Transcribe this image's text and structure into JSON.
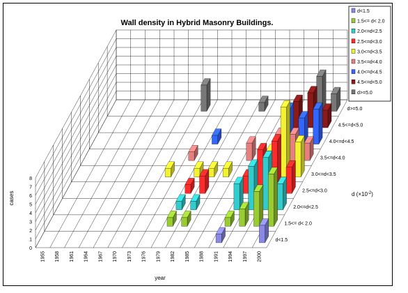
{
  "chart_data": {
    "type": "bar",
    "variant": "3d-columns",
    "title": "Wall density in Hybrid Masonry Buildings.",
    "xlabel": "year",
    "ylabel": "cases",
    "zlabel": "d (×10",
    "zlabel_sup": "-2",
    "zlabel_close": ")",
    "ylim": [
      0,
      8
    ],
    "y_ticks": [
      "0",
      "1",
      "2",
      "3",
      "4",
      "5",
      "6",
      "7",
      "8"
    ],
    "grid": true,
    "legend_position": "top-right",
    "categories": [
      "1955",
      "1958",
      "1961",
      "1964",
      "1967",
      "1970",
      "1973",
      "1976",
      "1979",
      "1982",
      "1985",
      "1988",
      "1991",
      "1994",
      "1997",
      "2000"
    ],
    "series": [
      {
        "name": "d<1.5",
        "color": "#8a8ae6",
        "values": [
          0,
          0,
          0,
          0,
          0,
          0,
          0,
          0,
          0,
          0,
          0,
          0,
          1,
          0,
          0,
          2
        ]
      },
      {
        "name": "1.5<= d< 2.0",
        "color": "#99cc33",
        "values": [
          0,
          0,
          0,
          0,
          0,
          0,
          0,
          0,
          1,
          1,
          0,
          0,
          1,
          2,
          4,
          6
        ]
      },
      {
        "name": "2.0<=d<2.5",
        "color": "#33cccc",
        "values": [
          0,
          0,
          0,
          0,
          0,
          0,
          0,
          0,
          1,
          1,
          0,
          0,
          3,
          5,
          6,
          3
        ]
      },
      {
        "name": "2.5<=d<3.0",
        "color": "#ff2a2a",
        "values": [
          0,
          0,
          0,
          0,
          0,
          0,
          0,
          0,
          1,
          2,
          0,
          0,
          2,
          5,
          6,
          3
        ]
      },
      {
        "name": "3.0<=d<3.5",
        "color": "#f2f233",
        "values": [
          0,
          0,
          0,
          0,
          0,
          0,
          1,
          0,
          1,
          1,
          1,
          0,
          0,
          3,
          8,
          4
        ]
      },
      {
        "name": "3.5<=d<4.0",
        "color": "#e68080",
        "values": [
          0,
          0,
          0,
          0,
          0,
          0,
          0,
          1,
          0,
          0,
          0,
          2,
          0,
          3,
          3,
          2
        ]
      },
      {
        "name": "4.0<=d<4.5",
        "color": "#3366ff",
        "values": [
          0,
          0,
          0,
          0,
          0,
          0,
          0,
          0,
          1,
          0,
          0,
          0,
          0,
          4,
          3,
          4
        ]
      },
      {
        "name": "4.5<=d<5.0",
        "color": "#8b1a1a",
        "values": [
          0,
          0,
          0,
          0,
          0,
          0,
          0,
          0,
          0,
          0,
          0,
          0,
          0,
          3,
          4,
          2
        ]
      },
      {
        "name": "d>=5.0",
        "color": "#777777",
        "values": [
          0,
          0,
          0,
          0,
          0,
          0,
          3,
          0,
          0,
          0,
          1,
          0,
          0,
          0,
          4,
          2
        ]
      }
    ],
    "depth_labels": [
      "d<1.5",
      "1.5<= d< 2.0",
      "2.0<=d<2.5",
      "2.5<=d<3.0",
      "3.0<=d<3.5",
      "3.5<=d<4.0",
      "4.0<=d<4.5",
      "4.5<=d<5.0",
      "d>=5.0"
    ]
  }
}
